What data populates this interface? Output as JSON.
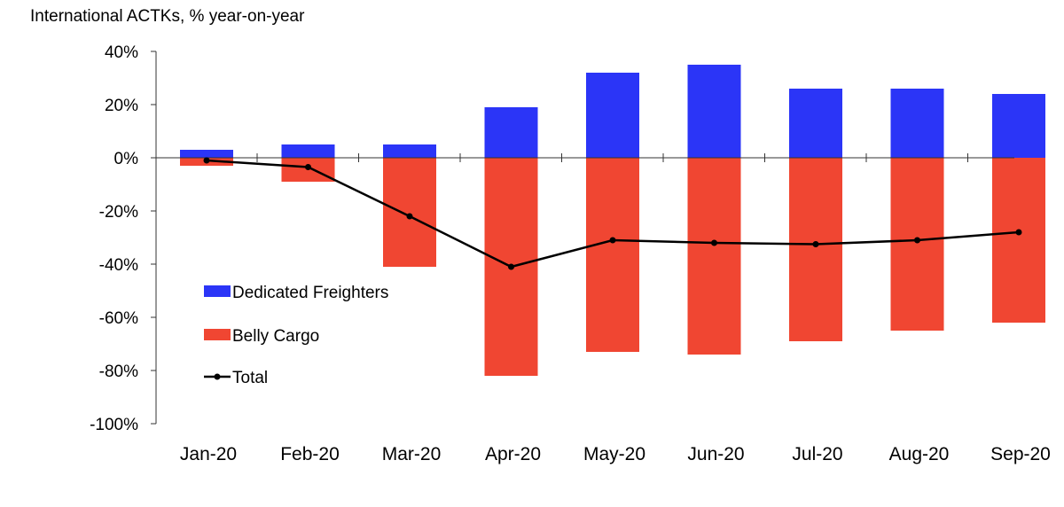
{
  "chart_data": {
    "type": "bar",
    "title": "International ACTKs, % year-on-year",
    "categories": [
      "Jan-20",
      "Feb-20",
      "Mar-20",
      "Apr-20",
      "May-20",
      "Jun-20",
      "Jul-20",
      "Aug-20",
      "Sep-20"
    ],
    "ylim": [
      -100,
      40
    ],
    "yticks": [
      40,
      20,
      0,
      -20,
      -40,
      -60,
      -80,
      -100
    ],
    "ytick_labels": [
      "40%",
      "20%",
      "0%",
      "-20%",
      "-40%",
      "-60%",
      "-80%",
      "-100%"
    ],
    "legend_position": "left",
    "series": [
      {
        "name": "Dedicated Freighters",
        "type": "bar",
        "color": "#2b35f7",
        "values": [
          3,
          5,
          5,
          19,
          32,
          35,
          26,
          26,
          24
        ]
      },
      {
        "name": "Belly Cargo",
        "type": "bar",
        "color": "#f04632",
        "values": [
          -3,
          -9,
          -41,
          -82,
          -73,
          -74,
          -69,
          -65,
          -62
        ]
      },
      {
        "name": "Total",
        "type": "line",
        "color": "#000000",
        "values": [
          -1,
          -3.5,
          -22,
          -41,
          -31,
          -32,
          -32.5,
          -31,
          -28
        ]
      }
    ]
  }
}
